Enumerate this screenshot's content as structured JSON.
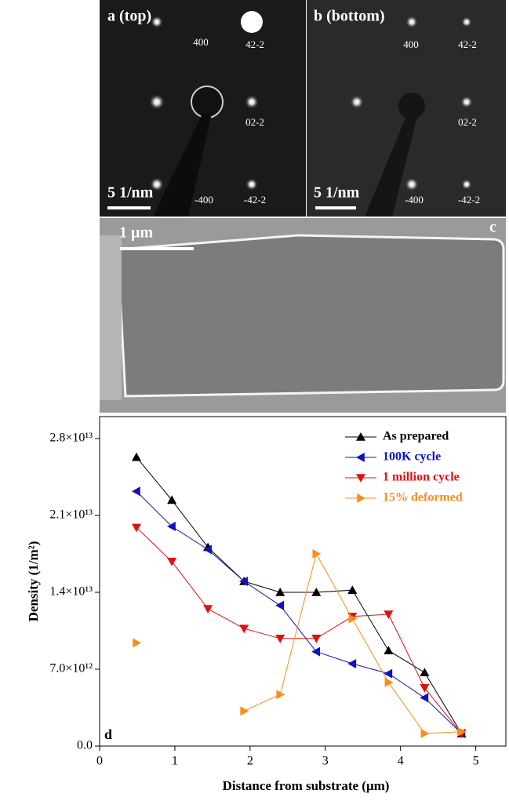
{
  "panels": {
    "a": {
      "label": "a  (top)",
      "spots": [
        "400",
        "42-2",
        "02-2",
        "-400",
        "-42-2"
      ],
      "scale": "5 1/nm"
    },
    "b": {
      "label": "b (bottom)",
      "spots": [
        "400",
        "42-2",
        "02-2",
        "-400",
        "-42-2"
      ],
      "scale": "5 1/nm"
    },
    "c": {
      "label": "c",
      "scale": "1 μm"
    }
  },
  "chart_data": {
    "type": "line",
    "panel_label": "d",
    "x_label": "Distance from substrate (μm)",
    "y_label": "Density (1/m²)",
    "x": [
      0.49,
      0.96,
      1.44,
      1.92,
      2.4,
      2.88,
      3.36,
      3.84,
      4.32,
      4.81
    ],
    "series": [
      {
        "name": "As prepared",
        "color": "#000000",
        "marker": "triangle-up",
        "values": [
          26300000000000.0,
          22400000000000.0,
          18100000000000.0,
          15000000000000.0,
          14000000000000.0,
          14000000000000.0,
          14200000000000.0,
          8700000000000.0,
          6700000000000.0,
          1150000000000.0
        ]
      },
      {
        "name": "100K cycle",
        "color": "#1010c0",
        "marker": "triangle-left",
        "values": [
          23200000000000.0,
          20000000000000.0,
          17900000000000.0,
          15000000000000.0,
          12800000000000.0,
          8600000000000.0,
          7500000000000.0,
          6600000000000.0,
          4400000000000.0,
          1150000000000.0
        ]
      },
      {
        "name": "1 million cycle",
        "color": "#e01010",
        "marker": "triangle-down",
        "values": [
          19900000000000.0,
          16800000000000.0,
          12500000000000.0,
          10700000000000.0,
          9800000000000.0,
          9800000000000.0,
          11800000000000.0,
          12000000000000.0,
          5300000000000.0,
          1150000000000.0
        ]
      },
      {
        "name": "15% deformed",
        "color": "#ff8c1a",
        "marker": "triangle-right",
        "values": [
          9400000000000.0,
          null,
          null,
          3200000000000.0,
          4700000000000.0,
          17500000000000.0,
          11600000000000.0,
          5800000000000.0,
          1150000000000.0,
          1300000000000.0
        ]
      }
    ],
    "xlim": [
      0,
      5.4
    ],
    "xticks": [
      0,
      1,
      2,
      3,
      4,
      5
    ],
    "ylim": [
      0,
      30000000000000.0
    ],
    "yticks": [
      {
        "value": 0,
        "label": "0.0"
      },
      {
        "value": 7000000000000.0,
        "label": "7.0×10¹²"
      },
      {
        "value": 14000000000000.0,
        "label": "1.4×10¹³"
      },
      {
        "value": 21000000000000.0,
        "label": "2.1×10¹³"
      },
      {
        "value": 28000000000000.0,
        "label": "2.8×10¹³"
      }
    ],
    "legend": "upper right",
    "grid": false
  }
}
